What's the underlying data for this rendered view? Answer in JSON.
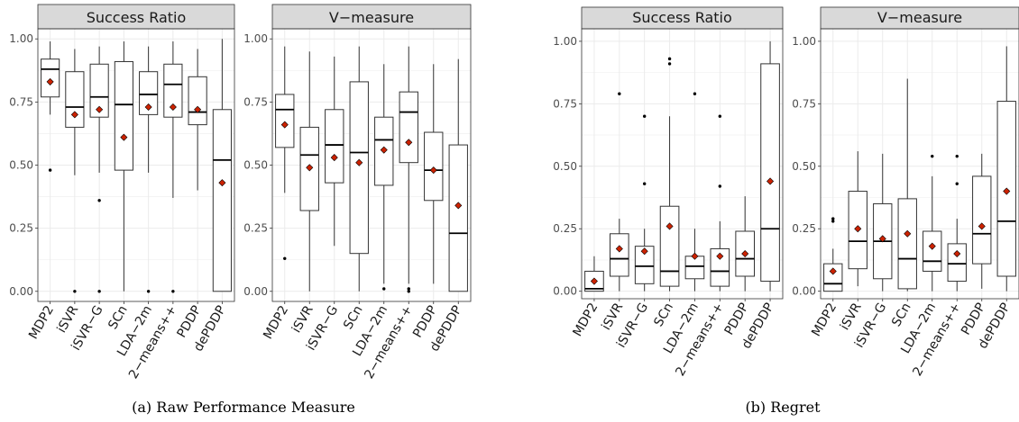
{
  "categories": [
    "MDP2",
    "iSVR",
    "iSVR−G",
    "SCn",
    "LDA−2m",
    "2−means++",
    "PDDP",
    "dePDDP"
  ],
  "captions": {
    "a": "(a)  Raw Performance Measure",
    "b": "(b)  Regret"
  },
  "colors": {
    "strip_fill": "#d9d9d9",
    "grid": "#ebebeb",
    "mean_marker": "#cc2200",
    "box_stroke": "#333333"
  },
  "chart_data": [
    {
      "type": "boxplot",
      "group": "a",
      "title": "Success Ratio",
      "ylim": [
        -0.04,
        1.04
      ],
      "yticks": [
        "0.00",
        "0.25",
        "0.50",
        "0.75",
        "1.00"
      ],
      "grid": true,
      "boxes": [
        {
          "category": "MDP2",
          "lower_whisker": 0.7,
          "q1": 0.77,
          "median": 0.88,
          "q3": 0.92,
          "upper_whisker": 0.99,
          "mean": 0.83,
          "outliers": [
            0.48
          ]
        },
        {
          "category": "iSVR",
          "lower_whisker": 0.46,
          "q1": 0.65,
          "median": 0.73,
          "q3": 0.87,
          "upper_whisker": 0.96,
          "mean": 0.7,
          "outliers": [
            0.0
          ]
        },
        {
          "category": "iSVR−G",
          "lower_whisker": 0.47,
          "q1": 0.69,
          "median": 0.77,
          "q3": 0.9,
          "upper_whisker": 0.97,
          "mean": 0.72,
          "outliers": [
            0.36,
            0.0
          ]
        },
        {
          "category": "SCn",
          "lower_whisker": 0.0,
          "q1": 0.48,
          "median": 0.74,
          "q3": 0.91,
          "upper_whisker": 0.99,
          "mean": 0.61,
          "outliers": []
        },
        {
          "category": "LDA−2m",
          "lower_whisker": 0.47,
          "q1": 0.7,
          "median": 0.78,
          "q3": 0.87,
          "upper_whisker": 0.97,
          "mean": 0.73,
          "outliers": [
            0.0
          ]
        },
        {
          "category": "2−means++",
          "lower_whisker": 0.37,
          "q1": 0.69,
          "median": 0.82,
          "q3": 0.9,
          "upper_whisker": 0.99,
          "mean": 0.73,
          "outliers": [
            0.0
          ]
        },
        {
          "category": "PDDP",
          "lower_whisker": 0.4,
          "q1": 0.66,
          "median": 0.71,
          "q3": 0.85,
          "upper_whisker": 0.96,
          "mean": 0.72,
          "outliers": []
        },
        {
          "category": "dePDDP",
          "lower_whisker": 0.0,
          "q1": 0.0,
          "median": 0.52,
          "q3": 0.72,
          "upper_whisker": 1.0,
          "mean": 0.43,
          "outliers": []
        }
      ]
    },
    {
      "type": "boxplot",
      "group": "a",
      "title": "V−measure",
      "ylim": [
        -0.04,
        1.04
      ],
      "yticks": [
        "0.00",
        "0.25",
        "0.50",
        "0.75",
        "1.00"
      ],
      "grid": true,
      "boxes": [
        {
          "category": "MDP2",
          "lower_whisker": 0.39,
          "q1": 0.57,
          "median": 0.72,
          "q3": 0.78,
          "upper_whisker": 0.97,
          "mean": 0.66,
          "outliers": [
            0.13
          ]
        },
        {
          "category": "iSVR",
          "lower_whisker": 0.0,
          "q1": 0.32,
          "median": 0.54,
          "q3": 0.65,
          "upper_whisker": 0.95,
          "mean": 0.49,
          "outliers": []
        },
        {
          "category": "iSVR−G",
          "lower_whisker": 0.18,
          "q1": 0.43,
          "median": 0.58,
          "q3": 0.72,
          "upper_whisker": 0.93,
          "mean": 0.53,
          "outliers": []
        },
        {
          "category": "SCn",
          "lower_whisker": 0.0,
          "q1": 0.15,
          "median": 0.55,
          "q3": 0.83,
          "upper_whisker": 0.97,
          "mean": 0.51,
          "outliers": []
        },
        {
          "category": "LDA−2m",
          "lower_whisker": 0.03,
          "q1": 0.42,
          "median": 0.6,
          "q3": 0.69,
          "upper_whisker": 0.9,
          "mean": 0.56,
          "outliers": [
            0.01
          ]
        },
        {
          "category": "2−means++",
          "lower_whisker": 0.03,
          "q1": 0.51,
          "median": 0.71,
          "q3": 0.79,
          "upper_whisker": 0.97,
          "mean": 0.59,
          "outliers": [
            0.0,
            0.01
          ]
        },
        {
          "category": "PDDP",
          "lower_whisker": 0.03,
          "q1": 0.36,
          "median": 0.48,
          "q3": 0.63,
          "upper_whisker": 0.9,
          "mean": 0.48,
          "outliers": []
        },
        {
          "category": "dePDDP",
          "lower_whisker": 0.0,
          "q1": 0.0,
          "median": 0.23,
          "q3": 0.58,
          "upper_whisker": 0.92,
          "mean": 0.34,
          "outliers": []
        }
      ]
    },
    {
      "type": "boxplot",
      "group": "b",
      "title": "Success Ratio",
      "ylim": [
        -0.03,
        1.05
      ],
      "yticks": [
        "0.00",
        "0.25",
        "0.50",
        "0.75",
        "1.00"
      ],
      "grid": true,
      "boxes": [
        {
          "category": "MDP2",
          "lower_whisker": 0.0,
          "q1": 0.0,
          "median": 0.01,
          "q3": 0.08,
          "upper_whisker": 0.14,
          "mean": 0.04,
          "outliers": []
        },
        {
          "category": "iSVR",
          "lower_whisker": 0.0,
          "q1": 0.06,
          "median": 0.13,
          "q3": 0.23,
          "upper_whisker": 0.29,
          "mean": 0.17,
          "outliers": [
            0.79
          ]
        },
        {
          "category": "iSVR−G",
          "lower_whisker": 0.0,
          "q1": 0.03,
          "median": 0.1,
          "q3": 0.18,
          "upper_whisker": 0.25,
          "mean": 0.16,
          "outliers": [
            0.43,
            0.7
          ]
        },
        {
          "category": "SCn",
          "lower_whisker": 0.0,
          "q1": 0.02,
          "median": 0.08,
          "q3": 0.34,
          "upper_whisker": 0.7,
          "mean": 0.26,
          "outliers": [
            0.91,
            0.93
          ]
        },
        {
          "category": "LDA−2m",
          "lower_whisker": 0.0,
          "q1": 0.05,
          "median": 0.1,
          "q3": 0.14,
          "upper_whisker": 0.25,
          "mean": 0.14,
          "outliers": [
            0.79
          ]
        },
        {
          "category": "2−means++",
          "lower_whisker": 0.0,
          "q1": 0.02,
          "median": 0.08,
          "q3": 0.17,
          "upper_whisker": 0.28,
          "mean": 0.14,
          "outliers": [
            0.42,
            0.7
          ]
        },
        {
          "category": "PDDP",
          "lower_whisker": 0.0,
          "q1": 0.06,
          "median": 0.13,
          "q3": 0.24,
          "upper_whisker": 0.38,
          "mean": 0.15,
          "outliers": []
        },
        {
          "category": "dePDDP",
          "lower_whisker": 0.0,
          "q1": 0.04,
          "median": 0.25,
          "q3": 0.91,
          "upper_whisker": 1.0,
          "mean": 0.44,
          "outliers": []
        }
      ]
    },
    {
      "type": "boxplot",
      "group": "b",
      "title": "V−measure",
      "ylim": [
        -0.03,
        1.05
      ],
      "yticks": [
        "0.00",
        "0.25",
        "0.50",
        "0.75",
        "1.00"
      ],
      "grid": true,
      "boxes": [
        {
          "category": "MDP2",
          "lower_whisker": 0.0,
          "q1": 0.0,
          "median": 0.03,
          "q3": 0.11,
          "upper_whisker": 0.17,
          "mean": 0.08,
          "outliers": [
            0.28,
            0.29
          ]
        },
        {
          "category": "iSVR",
          "lower_whisker": 0.02,
          "q1": 0.09,
          "median": 0.2,
          "q3": 0.4,
          "upper_whisker": 0.56,
          "mean": 0.25,
          "outliers": []
        },
        {
          "category": "iSVR−G",
          "lower_whisker": 0.0,
          "q1": 0.05,
          "median": 0.2,
          "q3": 0.35,
          "upper_whisker": 0.55,
          "mean": 0.21,
          "outliers": []
        },
        {
          "category": "SCn",
          "lower_whisker": 0.0,
          "q1": 0.01,
          "median": 0.13,
          "q3": 0.37,
          "upper_whisker": 0.85,
          "mean": 0.23,
          "outliers": []
        },
        {
          "category": "LDA−2m",
          "lower_whisker": 0.0,
          "q1": 0.08,
          "median": 0.12,
          "q3": 0.24,
          "upper_whisker": 0.46,
          "mean": 0.18,
          "outliers": [
            0.54
          ]
        },
        {
          "category": "2−means++",
          "lower_whisker": 0.0,
          "q1": 0.04,
          "median": 0.11,
          "q3": 0.19,
          "upper_whisker": 0.29,
          "mean": 0.15,
          "outliers": [
            0.43,
            0.54
          ]
        },
        {
          "category": "PDDP",
          "lower_whisker": 0.01,
          "q1": 0.11,
          "median": 0.23,
          "q3": 0.46,
          "upper_whisker": 0.55,
          "mean": 0.26,
          "outliers": []
        },
        {
          "category": "dePDDP",
          "lower_whisker": 0.0,
          "q1": 0.06,
          "median": 0.28,
          "q3": 0.76,
          "upper_whisker": 0.98,
          "mean": 0.4,
          "outliers": []
        }
      ]
    }
  ]
}
